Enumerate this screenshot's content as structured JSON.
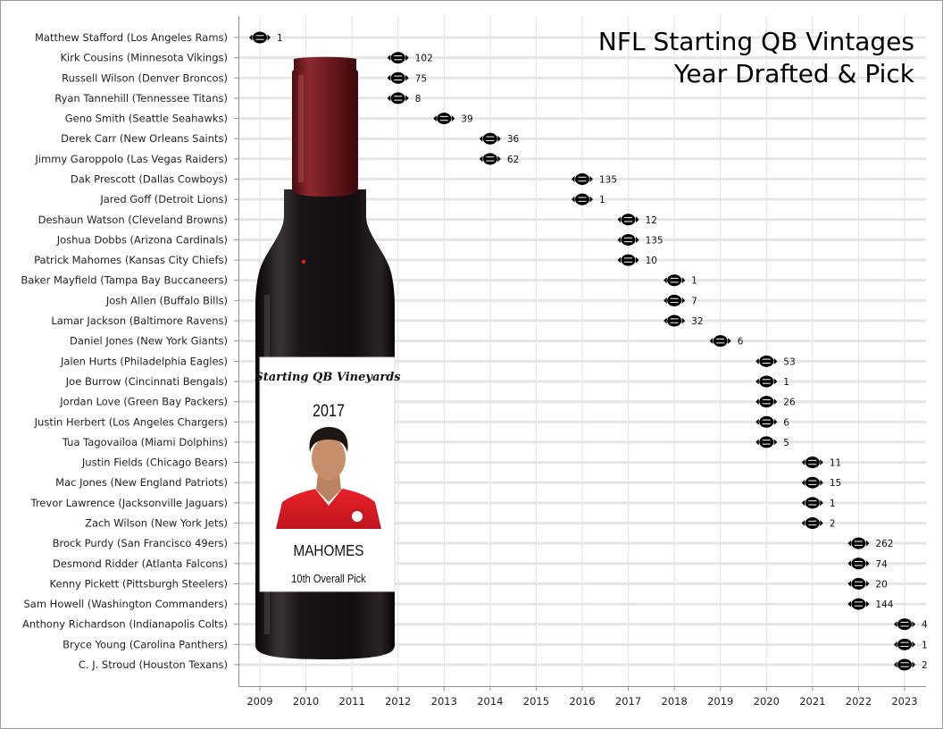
{
  "title": "NFL Starting QB Vintages",
  "subtitle": "Year Drafted & Pick",
  "label": {
    "brand": "Starting QB Vineyards",
    "year": "2017",
    "name": "MAHOMES",
    "pick": "10th Overall Pick"
  },
  "colors": {
    "capsule": "#6e1b1f",
    "bottle": "#161214",
    "grid": "#e6e6e6",
    "football": "#000000"
  },
  "chart_data": {
    "type": "scatter",
    "marker": "football-icon",
    "xlim": [
      2008.5,
      2023.5
    ],
    "xticks": [
      2009,
      2010,
      2011,
      2012,
      2013,
      2014,
      2015,
      2016,
      2017,
      2018,
      2019,
      2020,
      2021,
      2022,
      2023
    ],
    "grid": true,
    "points": [
      {
        "player": "Matthew Stafford (Los Angeles Rams)",
        "year": 2009,
        "pick": 1
      },
      {
        "player": "Kirk Cousins (Minnesota Vikings)",
        "year": 2012,
        "pick": 102
      },
      {
        "player": "Russell Wilson (Denver Broncos)",
        "year": 2012,
        "pick": 75
      },
      {
        "player": "Ryan Tannehill (Tennessee Titans)",
        "year": 2012,
        "pick": 8
      },
      {
        "player": "Geno Smith (Seattle Seahawks)",
        "year": 2013,
        "pick": 39
      },
      {
        "player": "Derek Carr (New Orleans Saints)",
        "year": 2014,
        "pick": 36
      },
      {
        "player": "Jimmy Garoppolo (Las Vegas Raiders)",
        "year": 2014,
        "pick": 62
      },
      {
        "player": "Dak Prescott (Dallas Cowboys)",
        "year": 2016,
        "pick": 135
      },
      {
        "player": "Jared Goff (Detroit Lions)",
        "year": 2016,
        "pick": 1
      },
      {
        "player": "Deshaun Watson (Cleveland Browns)",
        "year": 2017,
        "pick": 12
      },
      {
        "player": "Joshua Dobbs (Arizona Cardinals)",
        "year": 2017,
        "pick": 135
      },
      {
        "player": "Patrick Mahomes (Kansas City Chiefs)",
        "year": 2017,
        "pick": 10
      },
      {
        "player": "Baker Mayfield (Tampa Bay Buccaneers)",
        "year": 2018,
        "pick": 1
      },
      {
        "player": "Josh Allen (Buffalo Bills)",
        "year": 2018,
        "pick": 7
      },
      {
        "player": "Lamar Jackson (Baltimore Ravens)",
        "year": 2018,
        "pick": 32
      },
      {
        "player": "Daniel Jones (New York Giants)",
        "year": 2019,
        "pick": 6
      },
      {
        "player": "Jalen Hurts (Philadelphia Eagles)",
        "year": 2020,
        "pick": 53
      },
      {
        "player": "Joe Burrow (Cincinnati Bengals)",
        "year": 2020,
        "pick": 1
      },
      {
        "player": "Jordan Love (Green Bay Packers)",
        "year": 2020,
        "pick": 26
      },
      {
        "player": "Justin Herbert (Los Angeles Chargers)",
        "year": 2020,
        "pick": 6
      },
      {
        "player": "Tua Tagovailoa (Miami Dolphins)",
        "year": 2020,
        "pick": 5
      },
      {
        "player": "Justin Fields (Chicago Bears)",
        "year": 2021,
        "pick": 11
      },
      {
        "player": "Mac Jones (New England Patriots)",
        "year": 2021,
        "pick": 15
      },
      {
        "player": "Trevor Lawrence (Jacksonville Jaguars)",
        "year": 2021,
        "pick": 1
      },
      {
        "player": "Zach Wilson (New York Jets)",
        "year": 2021,
        "pick": 2
      },
      {
        "player": "Brock Purdy (San Francisco 49ers)",
        "year": 2022,
        "pick": 262
      },
      {
        "player": "Desmond Ridder (Atlanta Falcons)",
        "year": 2022,
        "pick": 74
      },
      {
        "player": "Kenny Pickett (Pittsburgh Steelers)",
        "year": 2022,
        "pick": 20
      },
      {
        "player": "Sam Howell (Washington Commanders)",
        "year": 2022,
        "pick": 144
      },
      {
        "player": "Anthony Richardson (Indianapolis Colts)",
        "year": 2023,
        "pick": 4
      },
      {
        "player": "Bryce Young (Carolina Panthers)",
        "year": 2023,
        "pick": 1
      },
      {
        "player": "C. J. Stroud (Houston Texans)",
        "year": 2023,
        "pick": 2
      }
    ]
  }
}
